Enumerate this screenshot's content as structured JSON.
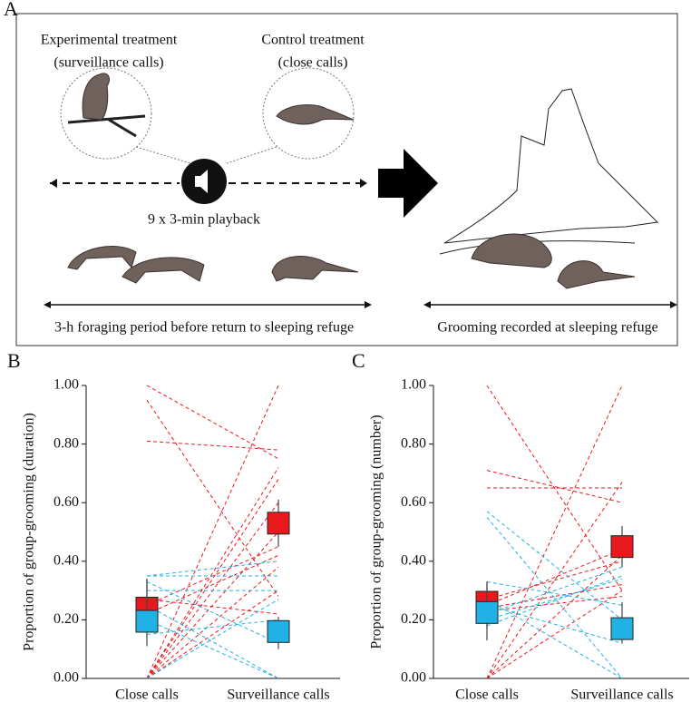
{
  "panel_a": {
    "label": "A",
    "experimental": "Experimental treatment",
    "experimental_sub": "(surveillance calls)",
    "control": "Control treatment",
    "control_sub": "(close calls)",
    "playback": "9 x 3-min playback",
    "foraging": "3-h foraging period before return to sleeping refuge",
    "grooming": "Grooming recorded at sleeping refuge"
  },
  "chart_data": [
    {
      "type": "paired",
      "label": "B",
      "ylabel": "Proportion of group-grooming (duration)",
      "categories": [
        "Close calls",
        "Surveillance calls"
      ],
      "ylim": [
        0,
        1
      ],
      "yticks": [
        {
          "value": 0,
          "label": "0.00"
        },
        {
          "value": 0.2,
          "label": "0.20"
        },
        {
          "value": 0.4,
          "label": "0.40"
        },
        {
          "value": 0.6,
          "label": "0.60"
        },
        {
          "value": 0.8,
          "label": "0.80"
        },
        {
          "value": 1,
          "label": "1.00"
        }
      ],
      "series": [
        {
          "color": "#e8191c",
          "values": [
            1.0,
            0.75
          ]
        },
        {
          "color": "#e8191c",
          "values": [
            0.81,
            0.78
          ]
        },
        {
          "color": "#e8191c",
          "values": [
            0.95,
            0.28
          ]
        },
        {
          "color": "#e8191c",
          "values": [
            0,
            1.0
          ]
        },
        {
          "color": "#e8191c",
          "values": [
            0,
            0.72
          ]
        },
        {
          "color": "#e8191c",
          "values": [
            0,
            0.68
          ]
        },
        {
          "color": "#e8191c",
          "values": [
            0,
            0.6
          ]
        },
        {
          "color": "#e8191c",
          "values": [
            0,
            0.5
          ]
        },
        {
          "color": "#e8191c",
          "values": [
            0.25,
            0.45
          ]
        },
        {
          "color": "#e8191c",
          "values": [
            0.22,
            0.42
          ]
        },
        {
          "color": "#e8191c",
          "values": [
            0,
            0.38
          ]
        },
        {
          "color": "#e8191c",
          "values": [
            0,
            0.3
          ]
        },
        {
          "color": "#e8191c",
          "values": [
            0.27,
            0.22
          ]
        },
        {
          "color": "#20b2e6",
          "values": [
            0.35,
            0.35
          ]
        },
        {
          "color": "#20b2e6",
          "values": [
            0.35,
            0.4
          ]
        },
        {
          "color": "#20b2e6",
          "values": [
            0.3,
            0.3
          ]
        },
        {
          "color": "#20b2e6",
          "values": [
            0.33,
            0.12
          ]
        },
        {
          "color": "#20b2e6",
          "values": [
            0.2,
            0
          ]
        },
        {
          "color": "#20b2e6",
          "values": [
            0.15,
            0.2
          ]
        },
        {
          "color": "#20b2e6",
          "values": [
            0.25,
            0
          ]
        },
        {
          "color": "#20b2e6",
          "values": [
            0,
            0.27
          ]
        }
      ],
      "summary": [
        {
          "color": "#e8191c",
          "values": [
            0.24,
            0.53
          ],
          "low": [
            0.16,
            0.45
          ],
          "high": [
            0.34,
            0.61
          ]
        },
        {
          "color": "#20b2e6",
          "values": [
            0.195,
            0.16
          ],
          "low": [
            0.11,
            0.1
          ],
          "high": [
            0.34,
            0.21
          ]
        }
      ]
    },
    {
      "type": "paired",
      "label": "C",
      "ylabel": "Proportion of group-grooming (number)",
      "categories": [
        "Close calls",
        "Surveillance calls"
      ],
      "ylim": [
        0,
        1
      ],
      "yticks": [
        {
          "value": 0,
          "label": "0.00"
        },
        {
          "value": 0.2,
          "label": "0.20"
        },
        {
          "value": 0.4,
          "label": "0.40"
        },
        {
          "value": 0.6,
          "label": "0.60"
        },
        {
          "value": 0.8,
          "label": "0.80"
        },
        {
          "value": 1,
          "label": "1.00"
        }
      ],
      "series": [
        {
          "color": "#e8191c",
          "values": [
            1.0,
            0.3
          ]
        },
        {
          "color": "#e8191c",
          "values": [
            0.71,
            0.6
          ]
        },
        {
          "color": "#e8191c",
          "values": [
            0.65,
            0.65
          ]
        },
        {
          "color": "#e8191c",
          "values": [
            0,
            1.0
          ]
        },
        {
          "color": "#e8191c",
          "values": [
            0,
            0.67
          ]
        },
        {
          "color": "#e8191c",
          "values": [
            0,
            0.42
          ]
        },
        {
          "color": "#e8191c",
          "values": [
            0.25,
            0.44
          ]
        },
        {
          "color": "#e8191c",
          "values": [
            0.27,
            0.4
          ]
        },
        {
          "color": "#e8191c",
          "values": [
            0.24,
            0.32
          ]
        },
        {
          "color": "#e8191c",
          "values": [
            0.23,
            0.28
          ]
        },
        {
          "color": "#e8191c",
          "values": [
            0,
            0.3
          ]
        },
        {
          "color": "#20b2e6",
          "values": [
            0.57,
            0.2
          ]
        },
        {
          "color": "#20b2e6",
          "values": [
            0.55,
            0
          ]
        },
        {
          "color": "#20b2e6",
          "values": [
            0.33,
            0.25
          ]
        },
        {
          "color": "#20b2e6",
          "values": [
            0.2,
            0.34
          ]
        },
        {
          "color": "#20b2e6",
          "values": [
            0.25,
            0.12
          ]
        },
        {
          "color": "#20b2e6",
          "values": [
            0.18,
            0.35
          ]
        },
        {
          "color": "#20b2e6",
          "values": [
            0.22,
            0.38
          ]
        },
        {
          "color": "#20b2e6",
          "values": [
            0.27,
            0
          ]
        }
      ],
      "summary": [
        {
          "color": "#e8191c",
          "values": [
            0.26,
            0.45
          ],
          "low": [
            0.17,
            0.38
          ],
          "high": [
            0.33,
            0.52
          ]
        },
        {
          "color": "#20b2e6",
          "values": [
            0.225,
            0.17
          ],
          "low": [
            0.13,
            0.12
          ],
          "high": [
            0.33,
            0.26
          ]
        }
      ]
    }
  ]
}
